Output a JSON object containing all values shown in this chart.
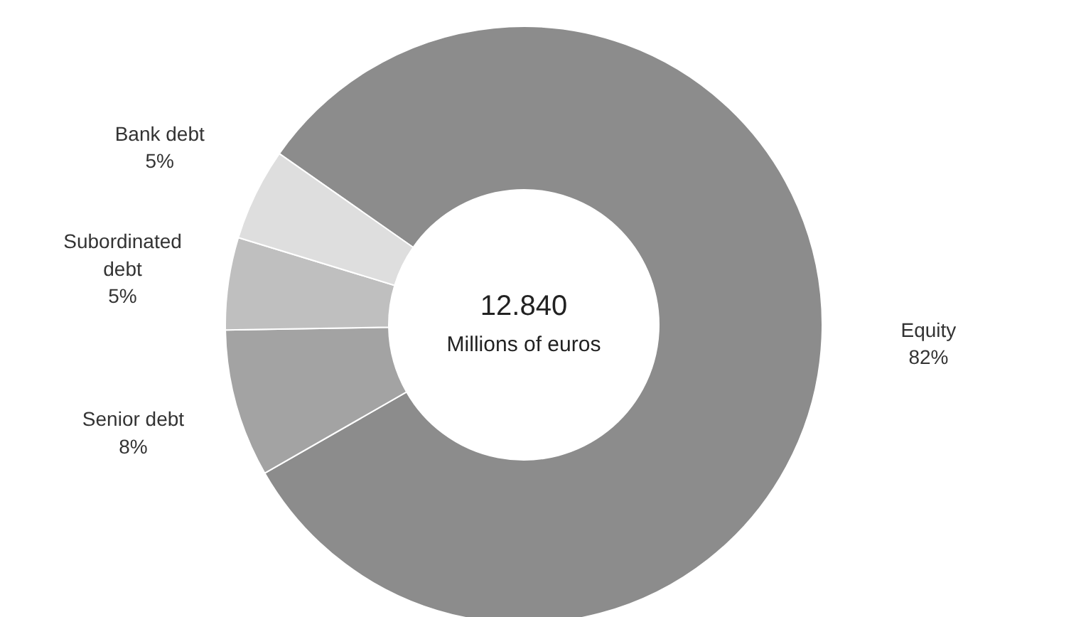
{
  "chart_data": {
    "type": "donut",
    "categories": [
      "Equity",
      "Senior debt",
      "Subordinated debt",
      "Bank debt"
    ],
    "values": [
      82,
      8,
      5,
      5
    ],
    "colors": [
      "#8c8c8c",
      "#a3a3a3",
      "#bfbfbf",
      "#dedede"
    ],
    "value_labels": [
      "82%",
      "8%",
      "5%",
      "5%"
    ],
    "annotations": [
      "12.840",
      "Millions of euros"
    ]
  }
}
